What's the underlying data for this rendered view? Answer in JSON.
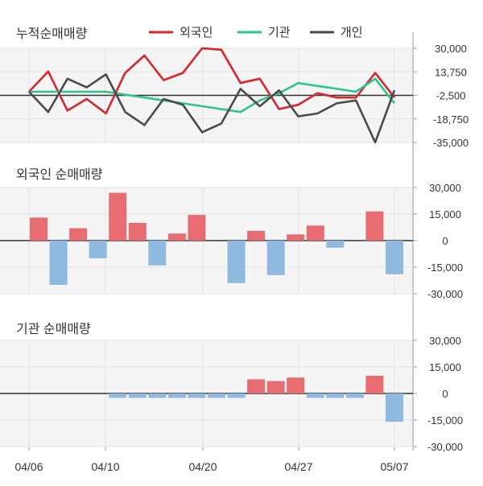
{
  "colors": {
    "foreign": "#d7262e",
    "institution": "#2dc58c",
    "individual": "#4a4a4a",
    "positive_bar": "#e86d73",
    "negative_bar": "#8fb9de",
    "panel_bg": "#f5f5f5",
    "zero_line": "#333333",
    "axis": "#9a9a9a"
  },
  "x_labels": [
    "04/06",
    "04/10",
    "04/20",
    "04/27",
    "05/07"
  ],
  "chart_data": [
    {
      "type": "line",
      "title": "누적순매매량",
      "legend": [
        "외국인",
        "기관",
        "개인"
      ],
      "y_ticks": [
        "30,000",
        "13,750",
        "-2,500",
        "-18,750",
        "-35,000"
      ],
      "ylim": [
        -35000,
        30000
      ],
      "x_count": 20,
      "series": [
        {
          "name": "외국인",
          "color_key": "foreign",
          "values": [
            0,
            14000,
            -13000,
            -5000,
            -15000,
            13000,
            25000,
            8000,
            13000,
            30000,
            29000,
            6000,
            9000,
            -12000,
            -9000,
            -1000,
            -4000,
            -4000,
            13000,
            -4000
          ]
        },
        {
          "name": "기관",
          "color_key": "institution",
          "values": [
            0,
            0,
            0,
            0,
            0,
            -2000,
            -4000,
            -6000,
            -8000,
            -10000,
            -12000,
            -14000,
            -6000,
            -1000,
            6000,
            4000,
            2000,
            0,
            9000,
            -8000
          ]
        },
        {
          "name": "개인",
          "color_key": "individual",
          "values": [
            0,
            -14000,
            9000,
            3000,
            12000,
            -14000,
            -23000,
            -5000,
            -9000,
            -28000,
            -22000,
            2000,
            -10000,
            1000,
            -17000,
            -15000,
            -8000,
            -6000,
            -35000,
            1000
          ]
        }
      ]
    },
    {
      "type": "bar",
      "title": "외국인 순매매량",
      "y_ticks": [
        "30,000",
        "15,000",
        "0",
        "-15,000",
        "-30,000"
      ],
      "ylim": [
        -30000,
        30000
      ],
      "values": [
        13000,
        -25000,
        7000,
        -10000,
        27000,
        10000,
        -14000,
        4000,
        14500,
        0,
        -24000,
        5500,
        -19500,
        3500,
        8500,
        -4000,
        0,
        16500,
        -19000
      ]
    },
    {
      "type": "bar",
      "title": "기관 순매매량",
      "y_ticks": [
        "30,000",
        "15,000",
        "0",
        "-15,000",
        "-30,000"
      ],
      "ylim": [
        -30000,
        30000
      ],
      "values": [
        0,
        0,
        0,
        0,
        -2500,
        -2500,
        -2500,
        -2500,
        -2500,
        -2500,
        -2500,
        8000,
        7000,
        9000,
        -2500,
        -2500,
        -2500,
        10000,
        -16000
      ]
    }
  ]
}
